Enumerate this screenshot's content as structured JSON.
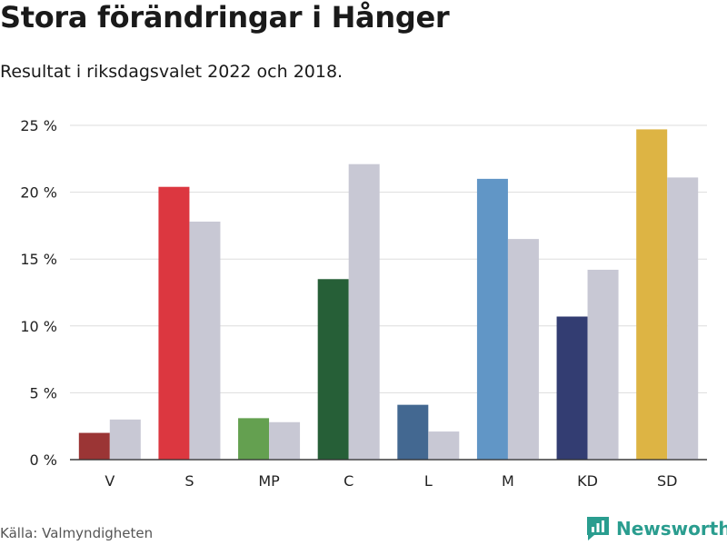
{
  "title": "Stora förändringar i Hånger",
  "subtitle": "Resultat i riksdagsvalet 2022 och 2018.",
  "source": "Källa: Valmyndigheten",
  "brand": {
    "name": "Newsworthy",
    "icon": "newsworthy-logo-icon",
    "color": "#2a9d8f"
  },
  "chart_data": {
    "type": "bar",
    "categories": [
      "V",
      "S",
      "MP",
      "C",
      "L",
      "M",
      "KD",
      "SD"
    ],
    "series": [
      {
        "values": [
          2.0,
          20.4,
          3.1,
          13.5,
          4.1,
          21.0,
          10.7,
          24.7
        ],
        "colors": [
          "#9b3535",
          "#dc3740",
          "#64a050",
          "#265f37",
          "#436891",
          "#6196c6",
          "#333d72",
          "#ddb444"
        ]
      },
      {
        "values": [
          3.0,
          17.8,
          2.8,
          22.1,
          2.1,
          16.5,
          14.2,
          21.1
        ],
        "color": "#c8c8d4"
      }
    ],
    "ylim": [
      0,
      25
    ],
    "yticks": [
      0,
      5,
      10,
      15,
      20,
      25
    ],
    "ytick_labels": [
      "0 %",
      "5 %",
      "10 %",
      "15 %",
      "20 %",
      "25 %"
    ],
    "grid": true,
    "legend": "none"
  }
}
